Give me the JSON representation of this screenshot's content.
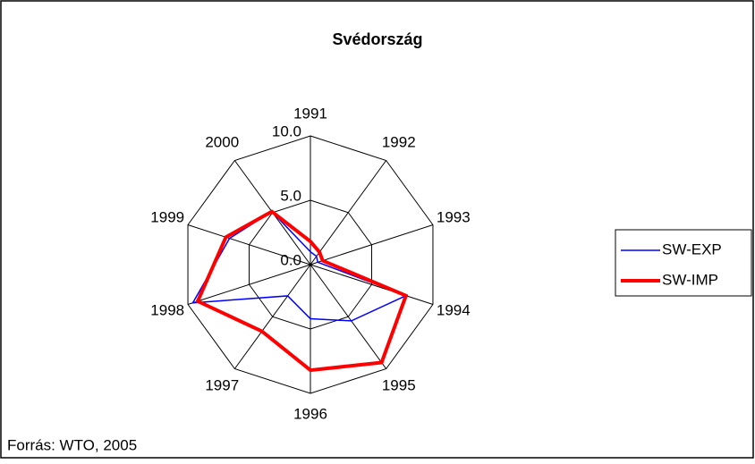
{
  "chart_data": {
    "type": "radar",
    "title": "Svédország",
    "categories": [
      "1991",
      "1992",
      "1993",
      "1994",
      "1995",
      "1996",
      "1997",
      "1998",
      "1999",
      "2000"
    ],
    "series": [
      {
        "name": "SW-EXP",
        "color": "#0000ff",
        "values": [
          1.0,
          0.8,
          0.6,
          7.8,
          5.4,
          4.2,
          3.0,
          9.6,
          6.6,
          5.1
        ]
      },
      {
        "name": "SW-IMP",
        "color": "#ff0000",
        "values": [
          1.8,
          1.2,
          1.0,
          7.8,
          9.4,
          8.2,
          6.4,
          9.2,
          6.9,
          5.1
        ]
      }
    ],
    "rlim": [
      0,
      10
    ],
    "rticks": [
      {
        "value": 0,
        "label": "0.0"
      },
      {
        "value": 5,
        "label": "5.0"
      },
      {
        "value": 10,
        "label": "10.0"
      }
    ],
    "source": "Forrás: WTO, 2005"
  }
}
